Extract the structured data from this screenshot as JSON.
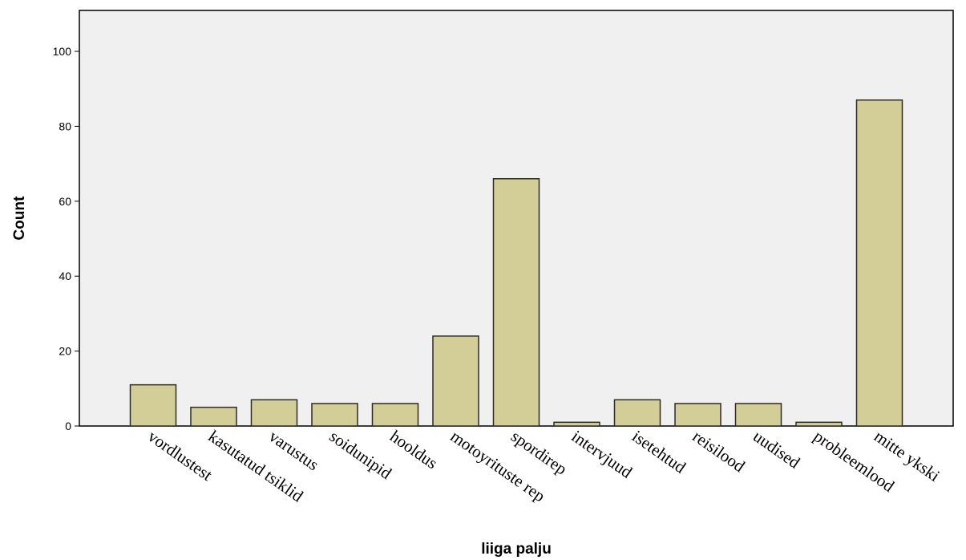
{
  "chart_data": {
    "type": "bar",
    "title": "",
    "xlabel": "liiga palju",
    "ylabel": "Count",
    "ylim": [
      0,
      110
    ],
    "yticks": [
      0,
      20,
      40,
      60,
      80,
      100
    ],
    "grid": false,
    "categories": [
      "vordlustest",
      "kasutatud tsiklid",
      "varustus",
      "soidunipid",
      "hooldus",
      "motoyrituste rep",
      "spordirep",
      "intervjuud",
      "isetehtud",
      "reisilood",
      "uudised",
      "probleemlood",
      "mitte ykski"
    ],
    "values": [
      11,
      5,
      7,
      6,
      6,
      24,
      66,
      1,
      7,
      6,
      6,
      1,
      87
    ],
    "colors": {
      "bar": "#d3ce97",
      "bar_edge": "#2b2b2b",
      "plot_bg": "#f0f0f0"
    }
  }
}
